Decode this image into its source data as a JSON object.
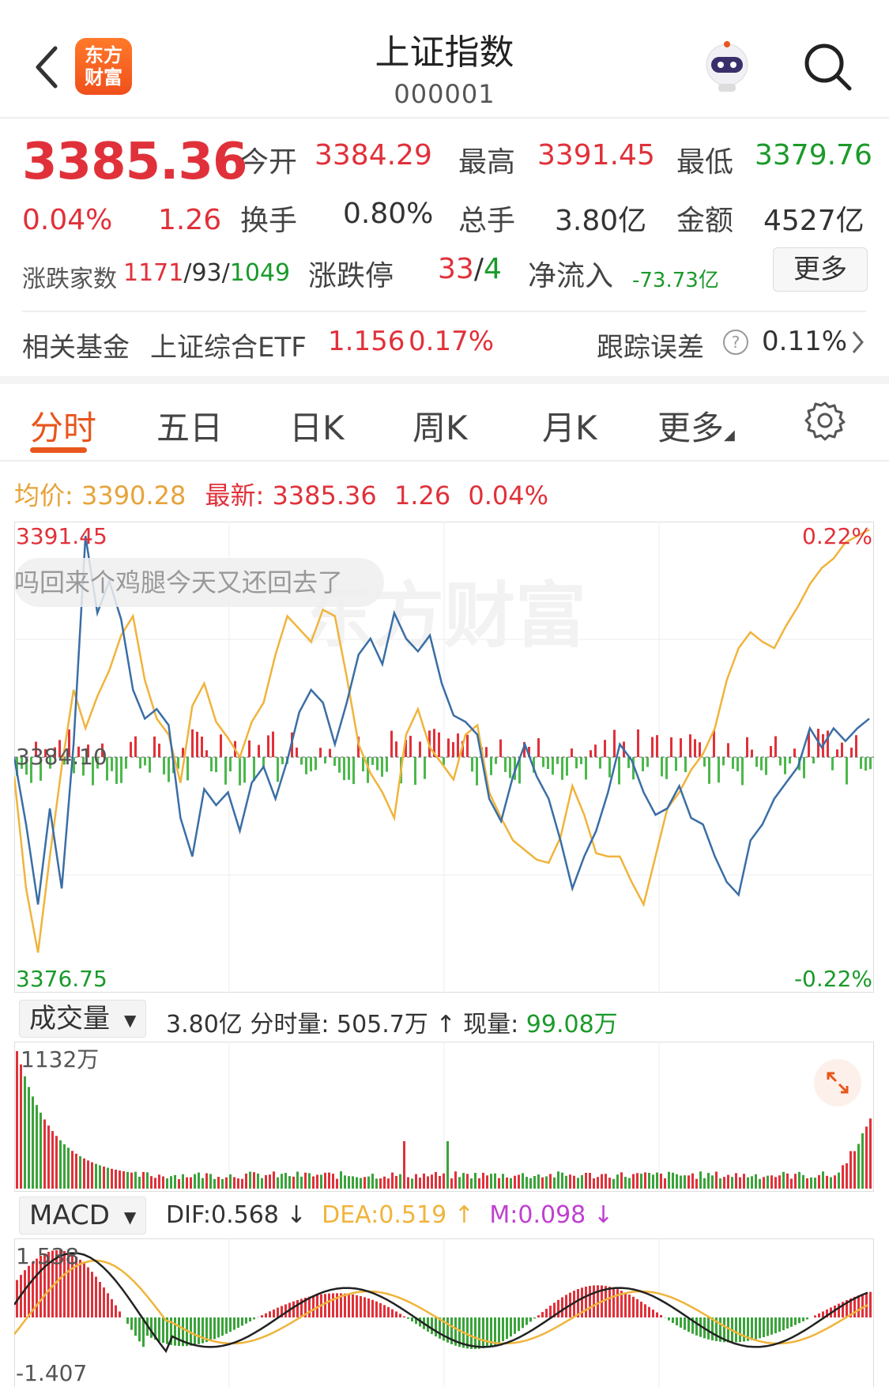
{
  "header": {
    "title": "上证指数",
    "code": "000001",
    "logo_line1": "东方",
    "logo_line2": "财富"
  },
  "quote": {
    "price": "3385.36",
    "pct": "0.04%",
    "change": "1.26",
    "open_label": "今开",
    "open": "3384.29",
    "high_label": "最高",
    "high": "3391.45",
    "low_label": "最低",
    "low": "3379.76",
    "turnover_label": "换手",
    "turnover": "0.80%",
    "volume_label": "总手",
    "volume": "3.80亿",
    "amount_label": "金额",
    "amount": "4527亿",
    "breadth_label": "涨跌家数",
    "up": "1171",
    "flat": "93",
    "down": "1049",
    "limit_label": "涨跌停",
    "limit_up": "33",
    "limit_down": "4",
    "inflow_label": "净流入",
    "inflow": "-73.73亿",
    "more": "更多"
  },
  "fund": {
    "label": "相关基金",
    "name": "上证综合ETF",
    "price": "1.156",
    "pct": "0.17%",
    "err_label": "跟踪误差",
    "err": "0.11%"
  },
  "tabs": [
    {
      "label": "分时"
    },
    {
      "label": "五日"
    },
    {
      "label": "日K"
    },
    {
      "label": "周K"
    },
    {
      "label": "月K"
    },
    {
      "label": "更多"
    }
  ],
  "intraday": {
    "avg_label": "均价:",
    "avg": "3390.28",
    "last_label": "最新:",
    "last": "3385.36",
    "chg": "1.26",
    "pct": "0.04%",
    "y_top": "3391.45",
    "y_mid": "3384.10",
    "y_bot": "3376.75",
    "pct_top": "0.22%",
    "pct_bot": "-0.22%",
    "comment": "吗回来个鸡腿今天又还回去了",
    "watermark": "东方财富"
  },
  "volume": {
    "selector": "成交量",
    "total": "3.80亿",
    "minute_label": "分时量:",
    "minute": "505.7万",
    "minute_arrow": "↑",
    "now_label": "现量:",
    "now": "99.08万",
    "max": "1132万"
  },
  "macd": {
    "selector": "MACD",
    "dif_label": "DIF:0.568",
    "dif_arrow": "↓",
    "dea_label": "DEA:0.519",
    "dea_arrow": "↑",
    "m_label": "M:0.098",
    "m_arrow": "↓",
    "y_top": "1.538",
    "y_bot": "-1.407"
  },
  "colors": {
    "red": "#e0313a",
    "green": "#1a9a2a",
    "price_line": "#3a6ea5",
    "avg_line": "#f0b43c",
    "accent": "#e8561c"
  },
  "chart_data": {
    "type": "line",
    "series": [
      {
        "name": "最新",
        "values": [
          3384.1,
          3382.0,
          3379.5,
          3382.5,
          3380.0,
          3384.5,
          3391.0,
          3388.6,
          3389.6,
          3388.4,
          3386.2,
          3385.3,
          3385.6,
          3385.1,
          3382.2,
          3381.0,
          3383.1,
          3382.6,
          3383.0,
          3381.8,
          3383.3,
          3383.8,
          3382.8,
          3384.0,
          3385.5,
          3386.2,
          3385.8,
          3384.5,
          3385.8,
          3387.3,
          3387.8,
          3387.0,
          3388.6,
          3387.8,
          3387.4,
          3387.9,
          3386.4,
          3385.4,
          3385.2,
          3384.8,
          3382.8,
          3382.1,
          3383.5,
          3384.5,
          3383.5,
          3382.8,
          3381.5,
          3380.0,
          3381.0,
          3381.8,
          3383.0,
          3384.5,
          3384.0,
          3383.0,
          3382.3,
          3382.5,
          3383.2,
          3382.2,
          3382.0,
          3381.0,
          3380.2,
          3379.8,
          3381.5,
          3382.0,
          3382.8,
          3383.3,
          3383.8,
          3385.0,
          3384.4,
          3385.0,
          3384.6,
          3385.0,
          3385.3
        ]
      },
      {
        "name": "均价",
        "values": [
          3383.5,
          3380.0,
          3378.0,
          3381.0,
          3383.8,
          3386.2,
          3385.0,
          3386.0,
          3386.8,
          3387.9,
          3388.5,
          3386.5,
          3385.3,
          3384.8,
          3383.3,
          3385.7,
          3386.4,
          3385.2,
          3384.7,
          3384.1,
          3385.2,
          3385.8,
          3387.3,
          3388.5,
          3388.1,
          3387.7,
          3388.7,
          3388.5,
          3386.6,
          3384.5,
          3383.6,
          3383.0,
          3382.2,
          3384.8,
          3385.6,
          3384.4,
          3383.9,
          3383.4,
          3384.8,
          3385.1,
          3383.0,
          3382.2,
          3381.5,
          3381.2,
          3380.9,
          3380.8,
          3381.6,
          3383.2,
          3382.3,
          3381.1,
          3381.0,
          3381.0,
          3380.2,
          3379.5,
          3381.0,
          3382.5,
          3383.0,
          3383.7,
          3384.2,
          3385.0,
          3386.5,
          3387.5,
          3388.0,
          3387.7,
          3387.5,
          3388.2,
          3388.8,
          3389.5,
          3390.0,
          3390.3,
          3390.8,
          3391.0,
          3391.2
        ]
      }
    ],
    "ylim": [
      3376.75,
      3391.45
    ]
  }
}
